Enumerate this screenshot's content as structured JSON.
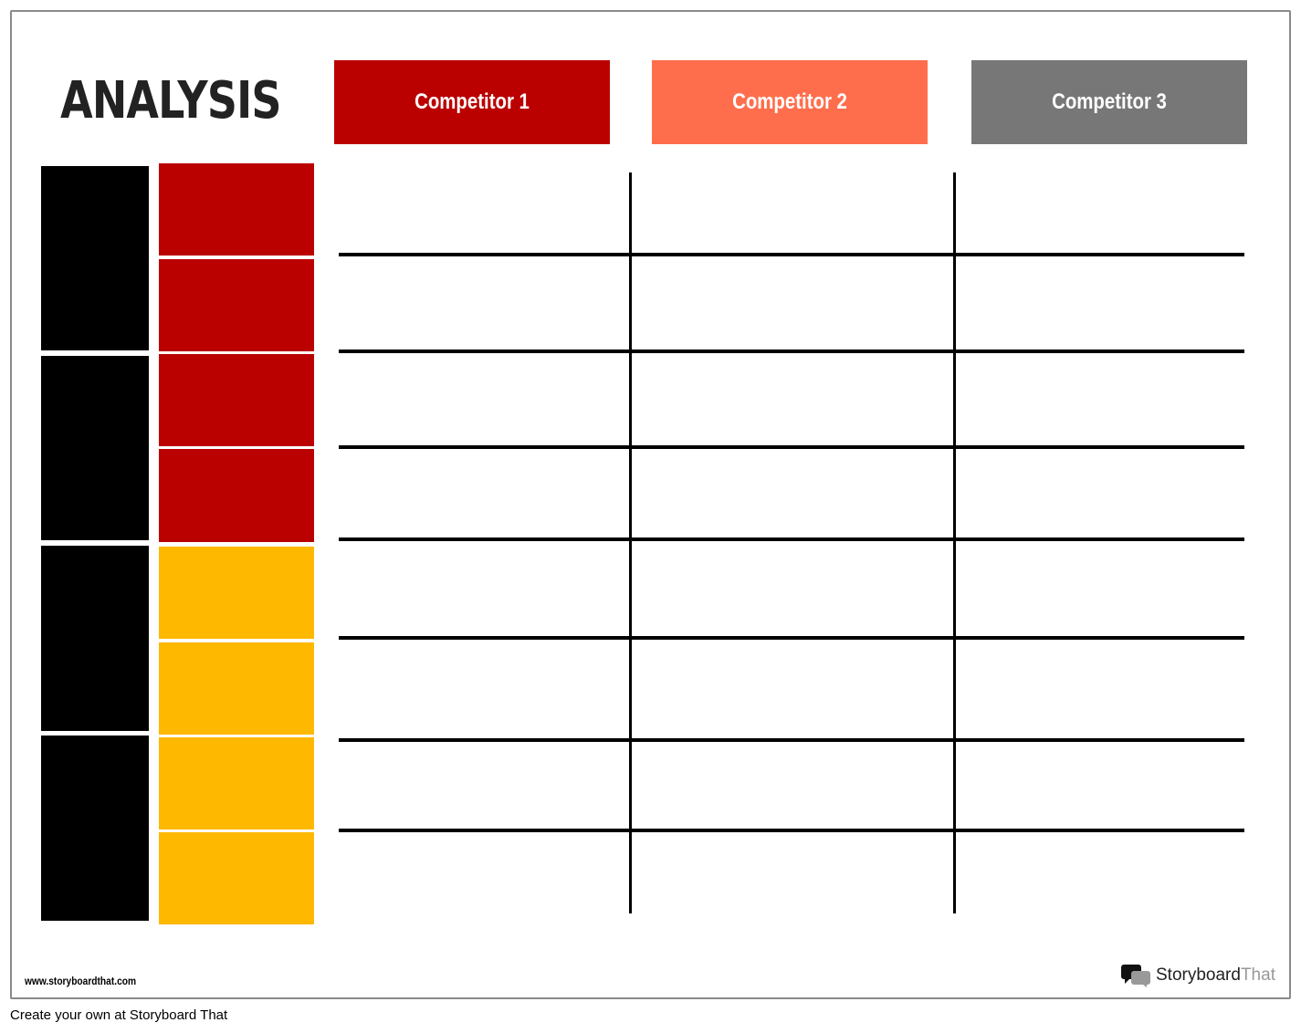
{
  "title": "ANALYSIS",
  "competitors": [
    {
      "label": "Competitor 1",
      "color": "#BB0000"
    },
    {
      "label": "Competitor 2",
      "color": "#FF6E4C"
    },
    {
      "label": "Competitor 3",
      "color": "#777777"
    }
  ],
  "colors": {
    "red": "#BB0000",
    "yellow": "#FFB800",
    "black": "#000000"
  },
  "footer": {
    "url": "www.storyboardthat.com",
    "logo_part1": "Storyboard",
    "logo_part2": "That",
    "caption": "Create your own at Storyboard That"
  }
}
